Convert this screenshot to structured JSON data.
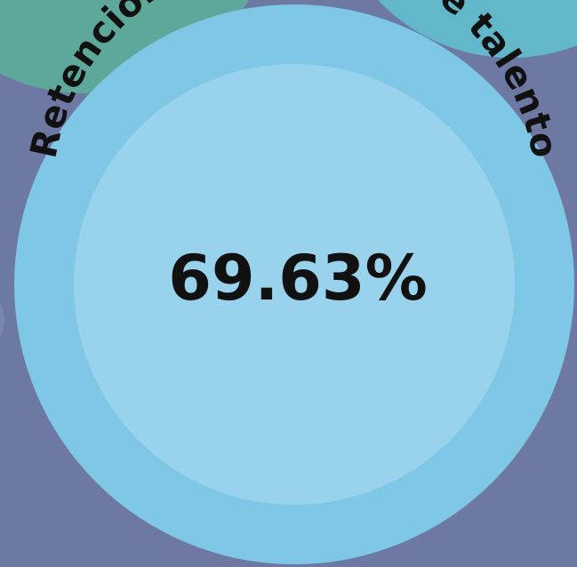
{
  "badge": {
    "label": "Retención y atracción de talento",
    "value": "69.63%"
  }
}
